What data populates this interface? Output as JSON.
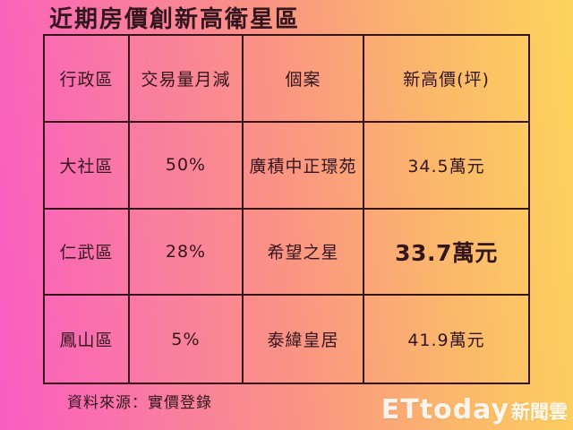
{
  "title": "近期房價創新高衛星區",
  "chart_data": {
    "type": "table",
    "title": "近期房價創新高衛星區",
    "columns": [
      "行政區",
      "交易量月減",
      "個案",
      "新高價(坪)"
    ],
    "rows": [
      [
        "大社區",
        "50%",
        "廣積中正璟苑",
        "34.5萬元"
      ],
      [
        "仁武區",
        "28%",
        "希望之星",
        "33.7萬元"
      ],
      [
        "鳳山區",
        "5%",
        "泰緯皇居",
        "41.9萬元"
      ]
    ],
    "emphasized_cell": {
      "row": 1,
      "col": 3,
      "value": "33.7萬元"
    },
    "source": "資料來源：實價登錄"
  },
  "footer": {
    "source": "資料來源：實價登錄"
  },
  "watermark": {
    "brand": "ETtoday",
    "suffix": "新聞雲"
  },
  "colors": {
    "gradient_left": "#fa5cc2",
    "gradient_mid": "#fa9483",
    "gradient_right": "#fcd45c",
    "table_border": "#331419",
    "text": "#33161d",
    "watermark_text": "#ffffff"
  }
}
